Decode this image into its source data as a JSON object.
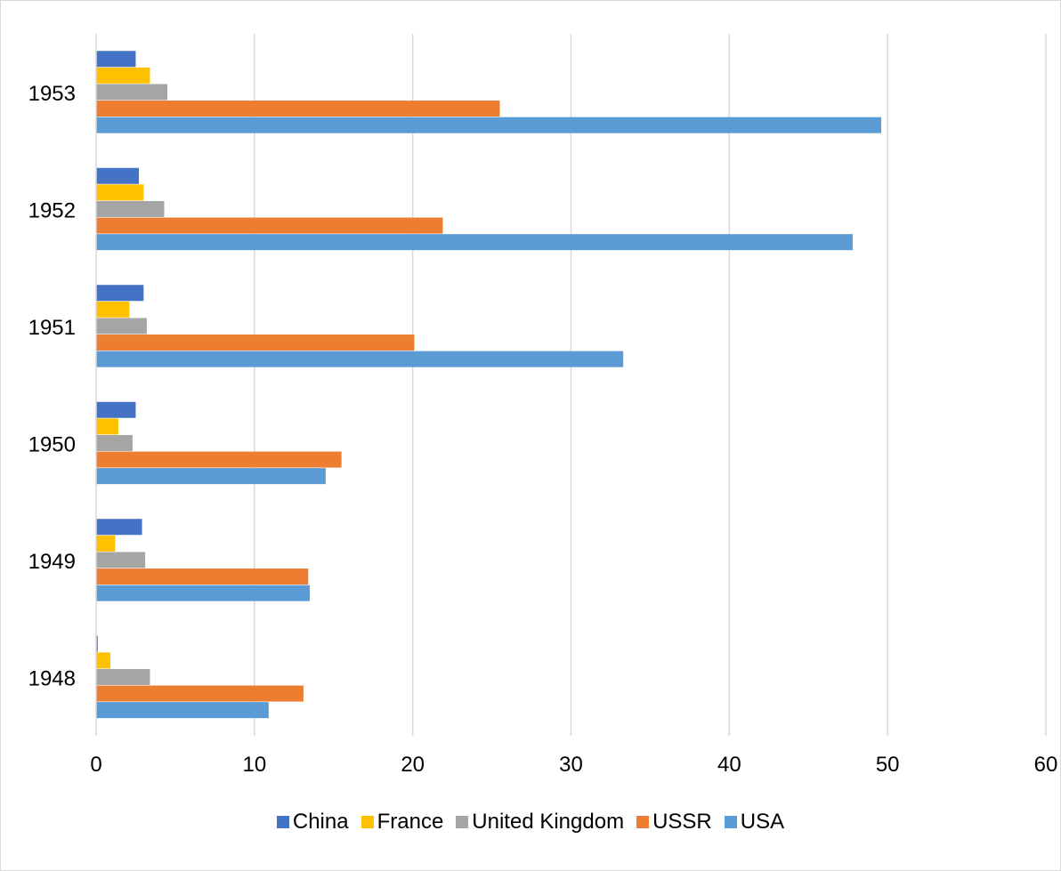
{
  "chart_data": {
    "type": "bar",
    "orientation": "horizontal",
    "title": "",
    "xlabel": "",
    "ylabel": "",
    "categories": [
      "1948",
      "1949",
      "1950",
      "1951",
      "1952",
      "1953"
    ],
    "xlim": [
      0,
      60
    ],
    "x_ticks": [
      "0",
      "10",
      "20",
      "30",
      "40",
      "50",
      "60"
    ],
    "grid": "vertical",
    "legend_position": "bottom",
    "series": [
      {
        "name": "China",
        "color": "#4472c4",
        "values": [
          0.1,
          2.9,
          2.5,
          3.0,
          2.7,
          2.5
        ]
      },
      {
        "name": "France",
        "color": "#ffc000",
        "values": [
          0.9,
          1.2,
          1.4,
          2.1,
          3.0,
          3.4
        ]
      },
      {
        "name": "United Kingdom",
        "color": "#a5a5a5",
        "values": [
          3.4,
          3.1,
          2.3,
          3.2,
          4.3,
          4.5
        ]
      },
      {
        "name": "USSR",
        "color": "#ed7d31",
        "values": [
          13.1,
          13.4,
          15.5,
          20.1,
          21.9,
          25.5
        ]
      },
      {
        "name": "USA",
        "color": "#5b9bd5",
        "values": [
          10.9,
          13.5,
          14.5,
          33.3,
          47.8,
          49.6
        ]
      }
    ]
  }
}
